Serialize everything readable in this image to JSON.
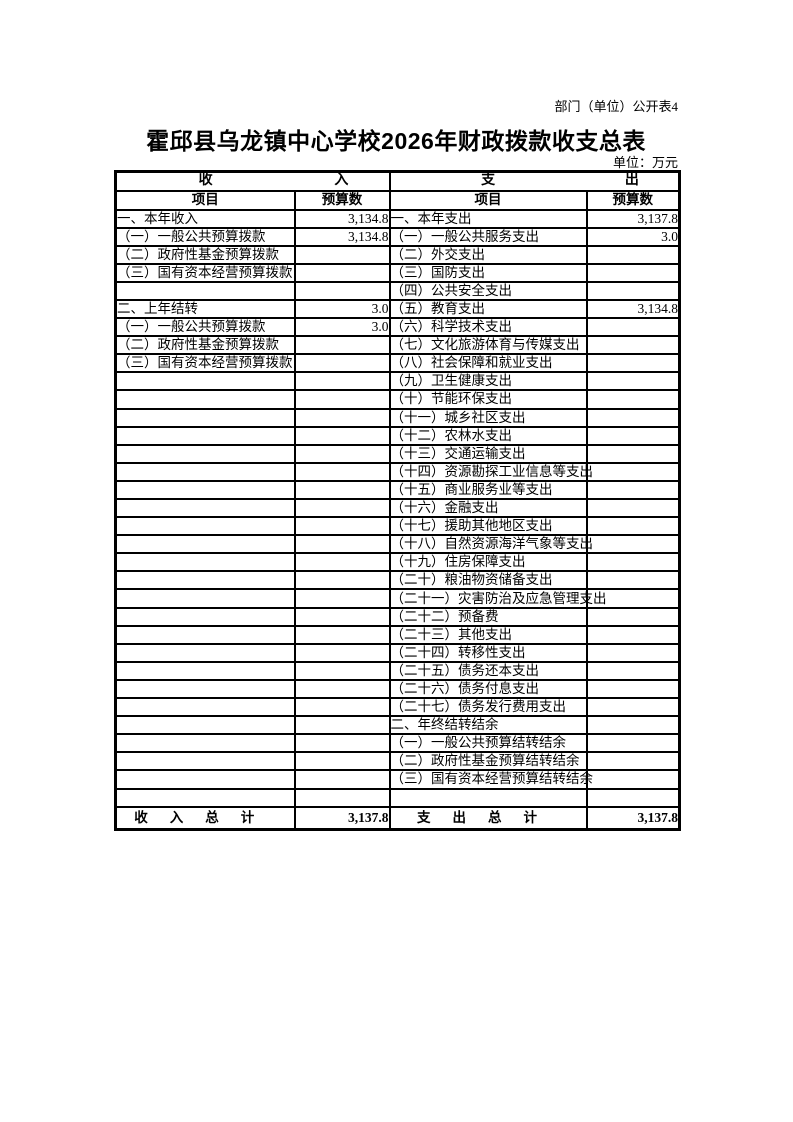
{
  "page": {
    "doc_label": "部门（单位）公开表4",
    "title": "霍邱县乌龙镇中心学校2026年财政拨款收支总表",
    "unit_note": "单位：万元"
  },
  "table": {
    "header": {
      "income_group": {
        "char1": "收",
        "char2": "入"
      },
      "expense_group": {
        "char1": "支",
        "char2": "出"
      },
      "income_item_col": "项目",
      "income_value_col": "预算数",
      "expense_item_col": "项目",
      "expense_value_col": "预算数"
    },
    "rows": [
      {
        "l": "一、本年收入",
        "lv": "3,134.8",
        "lo": false,
        "r": "一、本年支出",
        "rv": "3,137.8",
        "ro": false
      },
      {
        "l": "（一）一般公共预算拨款",
        "lv": "3,134.8",
        "lo": false,
        "r": "（一）一般公共服务支出",
        "rv": "3.0",
        "ro": false
      },
      {
        "l": "（二）政府性基金预算拨款",
        "lv": "",
        "lo": false,
        "r": "（二）外交支出",
        "rv": "",
        "ro": false
      },
      {
        "l": "（三）国有资本经营预算拨款",
        "lv": "",
        "lo": true,
        "r": "（三）国防支出",
        "rv": "",
        "ro": false
      },
      {
        "l": "",
        "lv": "",
        "lo": false,
        "r": "（四）公共安全支出",
        "rv": "",
        "ro": false
      },
      {
        "l": "二、上年结转",
        "lv": "3.0",
        "lo": false,
        "r": "（五）教育支出",
        "rv": "3,134.8",
        "ro": false
      },
      {
        "l": "（一）一般公共预算拨款",
        "lv": "3.0",
        "lo": false,
        "r": "（六）科学技术支出",
        "rv": "",
        "ro": false
      },
      {
        "l": "（二）政府性基金预算拨款",
        "lv": "",
        "lo": false,
        "r": "（七）文化旅游体育与传媒支出",
        "rv": "",
        "ro": true
      },
      {
        "l": "（三）国有资本经营预算拨款",
        "lv": "",
        "lo": true,
        "r": "（八）社会保障和就业支出",
        "rv": "",
        "ro": false
      },
      {
        "l": "",
        "lv": "",
        "lo": false,
        "r": "（九）卫生健康支出",
        "rv": "",
        "ro": false
      },
      {
        "l": "",
        "lv": "",
        "lo": false,
        "r": "（十）节能环保支出",
        "rv": "",
        "ro": false
      },
      {
        "l": "",
        "lv": "",
        "lo": false,
        "r": "（十一）城乡社区支出",
        "rv": "",
        "ro": false
      },
      {
        "l": "",
        "lv": "",
        "lo": false,
        "r": "（十二）农林水支出",
        "rv": "",
        "ro": false
      },
      {
        "l": "",
        "lv": "",
        "lo": false,
        "r": "（十三）交通运输支出",
        "rv": "",
        "ro": false
      },
      {
        "l": "",
        "lv": "",
        "lo": false,
        "r": "（十四）资源勘探工业信息等支出",
        "rv": "",
        "ro": true
      },
      {
        "l": "",
        "lv": "",
        "lo": false,
        "r": "（十五）商业服务业等支出",
        "rv": "",
        "ro": false
      },
      {
        "l": "",
        "lv": "",
        "lo": false,
        "r": "（十六）金融支出",
        "rv": "",
        "ro": false
      },
      {
        "l": "",
        "lv": "",
        "lo": false,
        "r": "（十七）援助其他地区支出",
        "rv": "",
        "ro": false
      },
      {
        "l": "",
        "lv": "",
        "lo": false,
        "r": "（十八）自然资源海洋气象等支出",
        "rv": "",
        "ro": true
      },
      {
        "l": "",
        "lv": "",
        "lo": false,
        "r": "（十九）住房保障支出",
        "rv": "",
        "ro": false
      },
      {
        "l": "",
        "lv": "",
        "lo": false,
        "r": "（二十）粮油物资储备支出",
        "rv": "",
        "ro": false
      },
      {
        "l": "",
        "lv": "",
        "lo": false,
        "r": "（二十一）灾害防治及应急管理支出",
        "rv": "",
        "ro": true
      },
      {
        "l": "",
        "lv": "",
        "lo": false,
        "r": "（二十二）预备费",
        "rv": "",
        "ro": false
      },
      {
        "l": "",
        "lv": "",
        "lo": false,
        "r": "（二十三）其他支出",
        "rv": "",
        "ro": false
      },
      {
        "l": "",
        "lv": "",
        "lo": false,
        "r": "（二十四）转移性支出",
        "rv": "",
        "ro": false
      },
      {
        "l": "",
        "lv": "",
        "lo": false,
        "r": "（二十五）债务还本支出",
        "rv": "",
        "ro": false
      },
      {
        "l": "",
        "lv": "",
        "lo": false,
        "r": "（二十六）债务付息支出",
        "rv": "",
        "ro": false
      },
      {
        "l": "",
        "lv": "",
        "lo": false,
        "r": "（二十七）债务发行费用支出",
        "rv": "",
        "ro": false
      },
      {
        "l": "",
        "lv": "",
        "lo": false,
        "r": "二、年终结转结余",
        "rv": "",
        "ro": false
      },
      {
        "l": "",
        "lv": "",
        "lo": false,
        "r": "（一）一般公共预算结转结余",
        "rv": "",
        "ro": false
      },
      {
        "l": "",
        "lv": "",
        "lo": false,
        "r": "（二）政府性基金预算结转结余",
        "rv": "",
        "ro": false
      },
      {
        "l": "",
        "lv": "",
        "lo": false,
        "r": "（三）国有资本经营预算结转结余",
        "rv": "",
        "ro": true
      },
      {
        "l": "",
        "lv": "",
        "lo": false,
        "r": "",
        "rv": "",
        "ro": false
      }
    ],
    "total": {
      "income_label": "收入总计",
      "income_value": "3,137.8",
      "expense_label": "支出总计",
      "expense_value": "3,137.8"
    }
  }
}
